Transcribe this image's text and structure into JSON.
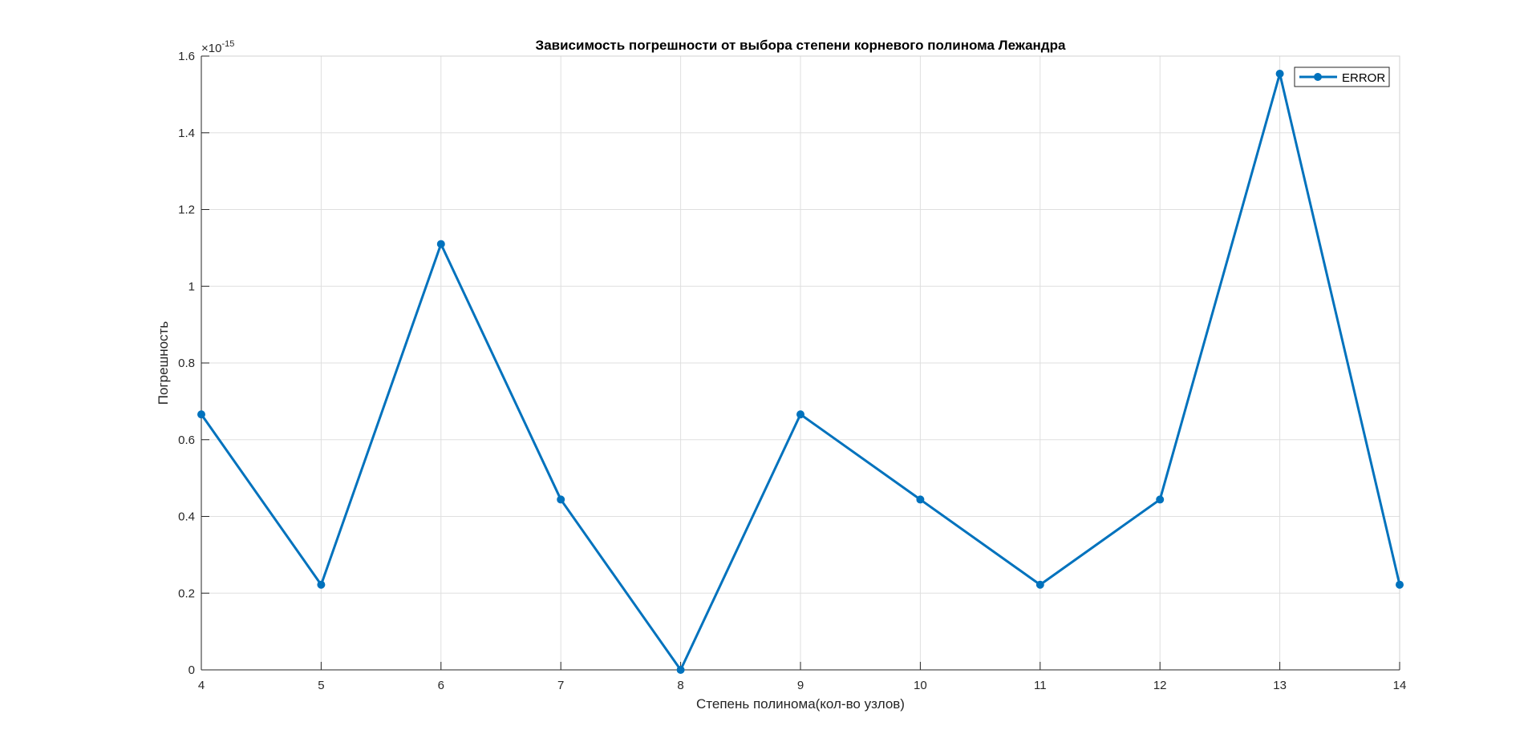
{
  "figure": {
    "background": "#ffffff"
  },
  "chart_data": {
    "type": "line",
    "title": "Зависимость погрешности от выбора степени корневого полинома Лежандра",
    "xlabel": "Степень полинома(кол-во узлов)",
    "ylabel": "Погрешность",
    "y_exponent_label": "×10",
    "y_exponent_power": "-15",
    "x": [
      4,
      5,
      6,
      7,
      8,
      9,
      10,
      11,
      12,
      13,
      14
    ],
    "xlim": [
      4,
      14
    ],
    "ylim": [
      0,
      1.6
    ],
    "x_ticks": [
      "4",
      "5",
      "6",
      "7",
      "8",
      "9",
      "10",
      "11",
      "12",
      "13",
      "14"
    ],
    "y_ticks": [
      "0",
      "0.2",
      "0.4",
      "0.6",
      "0.8",
      "1",
      "1.2",
      "1.4",
      "1.6"
    ],
    "y_tick_values": [
      0,
      0.2,
      0.4,
      0.6,
      0.8,
      1.0,
      1.2,
      1.4,
      1.6
    ],
    "grid": true,
    "legend_position": "top-right",
    "series": [
      {
        "name": "ERROR",
        "color": "#0072bd",
        "marker": "circle",
        "values": [
          0.666,
          0.222,
          1.11,
          0.444,
          0.0,
          0.666,
          0.444,
          0.222,
          0.444,
          1.554,
          0.222
        ]
      }
    ]
  }
}
